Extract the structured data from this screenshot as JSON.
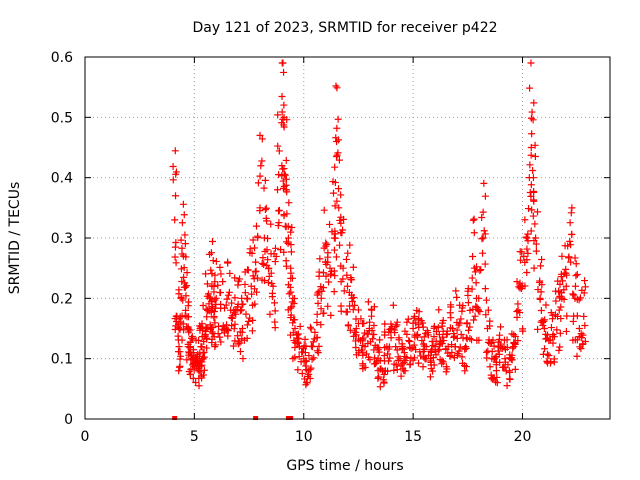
{
  "chart_data": {
    "type": "scatter",
    "title": "Day 121 of 2023, SRMTID for receiver p422",
    "xlabel": "GPS time / hours",
    "ylabel": "SRMTID / TECUs",
    "xlim": [
      0,
      24
    ],
    "ylim": [
      0,
      0.6
    ],
    "xticks": [
      0,
      5,
      10,
      15,
      20
    ],
    "xtick_labels": [
      "0",
      "5",
      "10",
      "15",
      "20"
    ],
    "yticks": [
      0,
      0.1,
      0.2,
      0.3,
      0.4,
      0.5,
      0.6
    ],
    "ytick_labels": [
      "0",
      "0.1",
      "0.2",
      "0.3",
      "0.4",
      "0.5",
      "0.6"
    ],
    "grid": true,
    "legend": "none",
    "marker": "+",
    "color": "#ff0000",
    "x_range_of_points": [
      4.0,
      22.9
    ],
    "series": [
      {
        "name": "SRMTID",
        "x": [
          4.1,
          4.2,
          4.3,
          4.4,
          4.5,
          4.6,
          4.7,
          4.8,
          4.9,
          5.0,
          5.1,
          5.2,
          5.3,
          5.4,
          5.5,
          5.6,
          5.7,
          5.8,
          5.9,
          6.0,
          6.2,
          6.4,
          6.6,
          6.8,
          7.0,
          7.2,
          7.4,
          7.6,
          7.8,
          8.0,
          8.2,
          8.4,
          8.6,
          8.8,
          9.0,
          9.1,
          9.2,
          9.3,
          9.4,
          9.5,
          9.6,
          9.8,
          10.0,
          10.2,
          10.4,
          10.6,
          10.8,
          11.0,
          11.2,
          11.4,
          11.5,
          11.6,
          11.8,
          12.0,
          12.2,
          12.4,
          12.6,
          12.8,
          13.0,
          13.2,
          13.4,
          13.6,
          13.8,
          14.0,
          14.2,
          14.4,
          14.6,
          14.8,
          15.0,
          15.2,
          15.4,
          15.6,
          15.8,
          16.0,
          16.2,
          16.4,
          16.6,
          16.8,
          17.0,
          17.2,
          17.4,
          17.6,
          17.8,
          18.0,
          18.2,
          18.4,
          18.6,
          18.8,
          19.0,
          19.2,
          19.4,
          19.6,
          19.8,
          20.0,
          20.2,
          20.4,
          20.5,
          20.6,
          20.8,
          21.0,
          21.2,
          21.4,
          21.6,
          21.8,
          22.0,
          22.2,
          22.4,
          22.6,
          22.8
        ],
        "y": [
          0.33,
          0.17,
          0.12,
          0.2,
          0.27,
          0.18,
          0.15,
          0.12,
          0.1,
          0.09,
          0.1,
          0.08,
          0.12,
          0.1,
          0.14,
          0.18,
          0.2,
          0.22,
          0.17,
          0.2,
          0.19,
          0.15,
          0.21,
          0.18,
          0.19,
          0.15,
          0.2,
          0.22,
          0.26,
          0.35,
          0.3,
          0.25,
          0.22,
          0.38,
          0.42,
          0.5,
          0.38,
          0.3,
          0.25,
          0.2,
          0.15,
          0.12,
          0.1,
          0.08,
          0.12,
          0.16,
          0.2,
          0.26,
          0.25,
          0.3,
          0.46,
          0.35,
          0.25,
          0.22,
          0.2,
          0.15,
          0.13,
          0.12,
          0.15,
          0.14,
          0.1,
          0.08,
          0.12,
          0.15,
          0.12,
          0.1,
          0.11,
          0.13,
          0.15,
          0.14,
          0.13,
          0.12,
          0.1,
          0.12,
          0.14,
          0.13,
          0.12,
          0.15,
          0.16,
          0.14,
          0.12,
          0.18,
          0.25,
          0.2,
          0.3,
          0.15,
          0.1,
          0.09,
          0.12,
          0.1,
          0.08,
          0.12,
          0.18,
          0.22,
          0.3,
          0.45,
          0.4,
          0.3,
          0.2,
          0.15,
          0.13,
          0.14,
          0.17,
          0.2,
          0.22,
          0.26,
          0.2,
          0.15,
          0.17
        ]
      }
    ],
    "extra_points_at_zero": [
      4.1,
      7.8,
      9.3,
      9.4
    ]
  }
}
